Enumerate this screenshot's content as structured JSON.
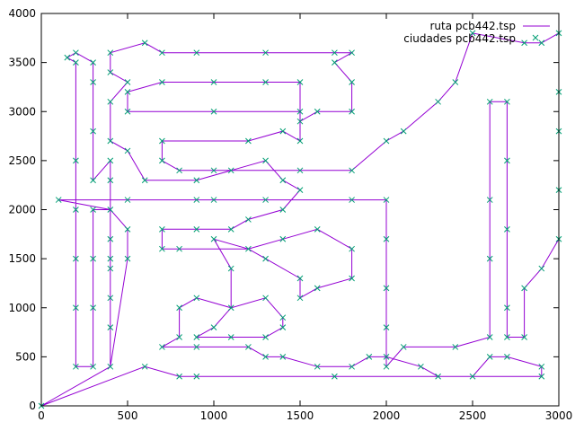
{
  "chart_data": {
    "type": "line",
    "title": "",
    "xlabel": "",
    "ylabel": "",
    "xlim": [
      0,
      3000
    ],
    "ylim": [
      0,
      4000
    ],
    "xticks": [
      0,
      500,
      1000,
      1500,
      2000,
      2500,
      3000
    ],
    "yticks": [
      0,
      500,
      1000,
      1500,
      2000,
      2500,
      3000,
      3500,
      4000
    ],
    "grid": false,
    "legend_position": "top-right",
    "series": [
      {
        "name": "ruta pcb442.tsp",
        "style": "line",
        "color": "#9400d3",
        "points": [
          [
            0,
            0
          ],
          [
            400,
            400
          ],
          [
            400,
            1100
          ],
          [
            400,
            1400
          ],
          [
            400,
            1700
          ],
          [
            400,
            2300
          ],
          [
            400,
            2500
          ],
          [
            300,
            2300
          ],
          [
            300,
            2800
          ],
          [
            300,
            3300
          ],
          [
            300,
            3500
          ],
          [
            200,
            3600
          ],
          [
            150,
            3550
          ],
          [
            200,
            3500
          ],
          [
            200,
            2500
          ],
          [
            200,
            2000
          ],
          [
            200,
            1500
          ],
          [
            200,
            1000
          ],
          [
            200,
            400
          ],
          [
            300,
            400
          ],
          [
            300,
            1000
          ],
          [
            300,
            1500
          ],
          [
            300,
            2000
          ],
          [
            400,
            2000
          ],
          [
            400,
            1500
          ],
          [
            400,
            800
          ],
          [
            400,
            400
          ],
          [
            500,
            1500
          ],
          [
            500,
            1800
          ],
          [
            400,
            2000
          ],
          [
            100,
            2100
          ],
          [
            500,
            2100
          ],
          [
            900,
            2100
          ],
          [
            1000,
            2100
          ],
          [
            1300,
            2100
          ],
          [
            1800,
            2100
          ],
          [
            2000,
            2100
          ],
          [
            2000,
            1700
          ],
          [
            2000,
            1200
          ],
          [
            2000,
            800
          ],
          [
            2000,
            400
          ],
          [
            2100,
            600
          ],
          [
            2400,
            600
          ],
          [
            2600,
            700
          ],
          [
            2600,
            1500
          ],
          [
            2600,
            2100
          ],
          [
            2600,
            3100
          ],
          [
            2700,
            3100
          ],
          [
            2700,
            2500
          ],
          [
            2700,
            1800
          ],
          [
            2700,
            1000
          ],
          [
            2700,
            700
          ],
          [
            2800,
            700
          ],
          [
            2800,
            1200
          ],
          [
            2900,
            1400
          ],
          [
            3000,
            1700
          ],
          [
            3000,
            2200
          ],
          [
            3000,
            2800
          ],
          [
            3000,
            3200
          ],
          [
            3000,
            3800
          ],
          [
            2900,
            3700
          ],
          [
            2800,
            3700
          ],
          [
            2500,
            3800
          ],
          [
            2400,
            3300
          ],
          [
            2300,
            3100
          ],
          [
            2100,
            2800
          ],
          [
            2000,
            2700
          ],
          [
            1800,
            2400
          ],
          [
            1500,
            2400
          ],
          [
            1000,
            2400
          ],
          [
            800,
            2400
          ],
          [
            700,
            2500
          ],
          [
            700,
            2700
          ],
          [
            1200,
            2700
          ],
          [
            1400,
            2800
          ],
          [
            1500,
            2700
          ],
          [
            1500,
            3300
          ],
          [
            1300,
            3300
          ],
          [
            1000,
            3300
          ],
          [
            700,
            3300
          ],
          [
            500,
            3200
          ],
          [
            500,
            3000
          ],
          [
            1000,
            3000
          ],
          [
            1500,
            3000
          ],
          [
            1500,
            2900
          ],
          [
            1600,
            3000
          ],
          [
            1800,
            3000
          ],
          [
            1800,
            3300
          ],
          [
            1700,
            3500
          ],
          [
            1800,
            3600
          ],
          [
            1700,
            3600
          ],
          [
            1300,
            3600
          ],
          [
            900,
            3600
          ],
          [
            700,
            3600
          ],
          [
            600,
            3700
          ],
          [
            400,
            3600
          ],
          [
            400,
            3400
          ],
          [
            500,
            3300
          ],
          [
            400,
            3100
          ],
          [
            400,
            2700
          ],
          [
            500,
            2600
          ],
          [
            600,
            2300
          ],
          [
            900,
            2300
          ],
          [
            1100,
            2400
          ],
          [
            1300,
            2500
          ],
          [
            1400,
            2300
          ],
          [
            1500,
            2200
          ],
          [
            1400,
            2000
          ],
          [
            1200,
            1900
          ],
          [
            1100,
            1800
          ],
          [
            900,
            1800
          ],
          [
            700,
            1800
          ],
          [
            700,
            1600
          ],
          [
            800,
            1600
          ],
          [
            1200,
            1600
          ],
          [
            1400,
            1700
          ],
          [
            1600,
            1800
          ],
          [
            1800,
            1600
          ],
          [
            1800,
            1300
          ],
          [
            1600,
            1200
          ],
          [
            1500,
            1100
          ],
          [
            1500,
            1300
          ],
          [
            1300,
            1500
          ],
          [
            1200,
            1600
          ],
          [
            1000,
            1700
          ],
          [
            1100,
            1400
          ],
          [
            1100,
            1000
          ],
          [
            1000,
            800
          ],
          [
            900,
            700
          ],
          [
            1100,
            700
          ],
          [
            1300,
            700
          ],
          [
            1400,
            800
          ],
          [
            1400,
            900
          ],
          [
            1300,
            1100
          ],
          [
            1100,
            1000
          ],
          [
            900,
            1100
          ],
          [
            800,
            1000
          ],
          [
            800,
            700
          ],
          [
            700,
            600
          ],
          [
            900,
            600
          ],
          [
            1200,
            600
          ],
          [
            1300,
            500
          ],
          [
            1400,
            500
          ],
          [
            1600,
            400
          ],
          [
            1800,
            400
          ],
          [
            1900,
            500
          ],
          [
            2000,
            500
          ],
          [
            2200,
            400
          ],
          [
            2300,
            300
          ],
          [
            2500,
            300
          ],
          [
            2600,
            500
          ],
          [
            2700,
            500
          ],
          [
            2900,
            400
          ],
          [
            2900,
            300
          ],
          [
            1700,
            300
          ],
          [
            900,
            300
          ],
          [
            800,
            300
          ],
          [
            600,
            400
          ],
          [
            0,
            0
          ]
        ]
      },
      {
        "name": "ciudades pcb442.tsp",
        "style": "points",
        "color": "#009e73",
        "marker": "x-icon"
      }
    ]
  }
}
